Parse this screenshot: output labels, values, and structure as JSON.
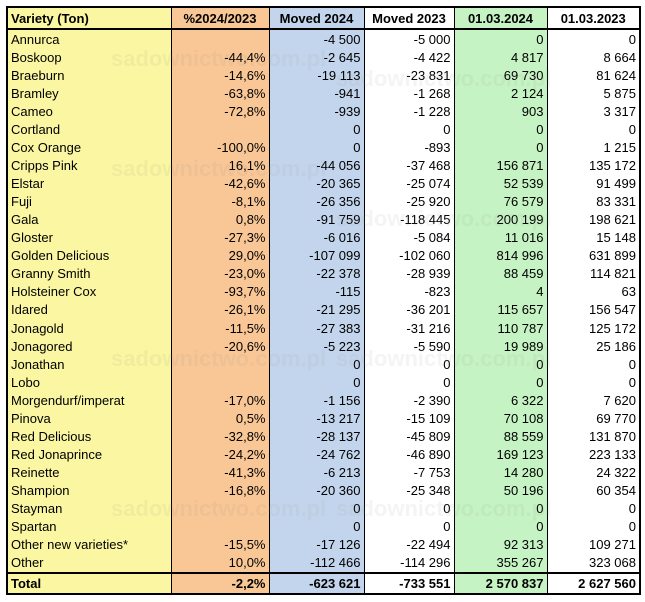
{
  "headers": [
    "Variety (Ton)",
    "%2024/2023",
    "Moved 2024",
    "Moved 2023",
    "01.03.2024",
    "01.03.2023"
  ],
  "rows": [
    [
      "Annurca",
      "",
      "-4 500",
      "-5 000",
      "0",
      "0"
    ],
    [
      "Boskoop",
      "-44,4%",
      "-2 645",
      "-4 422",
      "4 817",
      "8 664"
    ],
    [
      "Braeburn",
      "-14,6%",
      "-19 113",
      "-23 831",
      "69 730",
      "81 624"
    ],
    [
      "Bramley",
      "-63,8%",
      "-941",
      "-1 268",
      "2 124",
      "5 875"
    ],
    [
      "Cameo",
      "-72,8%",
      "-939",
      "-1 228",
      "903",
      "3 317"
    ],
    [
      "Cortland",
      "",
      "0",
      "0",
      "0",
      "0"
    ],
    [
      "Cox Orange",
      "-100,0%",
      "0",
      "-893",
      "0",
      "1 215"
    ],
    [
      "Cripps Pink",
      "16,1%",
      "-44 056",
      "-37 468",
      "156 871",
      "135 172"
    ],
    [
      "Elstar",
      "-42,6%",
      "-20 365",
      "-25 074",
      "52 539",
      "91 499"
    ],
    [
      "Fuji",
      "-8,1%",
      "-26 356",
      "-25 920",
      "76 579",
      "83 331"
    ],
    [
      "Gala",
      "0,8%",
      "-91 759",
      "-118 445",
      "200 199",
      "198 621"
    ],
    [
      "Gloster",
      "-27,3%",
      "-6 016",
      "-5 084",
      "11 016",
      "15 148"
    ],
    [
      "Golden Delicious",
      "29,0%",
      "-107 099",
      "-102 060",
      "814 996",
      "631 899"
    ],
    [
      "Granny Smith",
      "-23,0%",
      "-22 378",
      "-28 939",
      "88 459",
      "114 821"
    ],
    [
      "Holsteiner Cox",
      "-93,7%",
      "-115",
      "-823",
      "4",
      "63"
    ],
    [
      "Idared",
      "-26,1%",
      "-21 295",
      "-36 201",
      "115 657",
      "156 547"
    ],
    [
      "Jonagold",
      "-11,5%",
      "-27 383",
      "-31 216",
      "110 787",
      "125 172"
    ],
    [
      "Jonagored",
      "-20,6%",
      "-5 223",
      "-5 590",
      "19 989",
      "25 186"
    ],
    [
      "Jonathan",
      "",
      "0",
      "0",
      "0",
      "0"
    ],
    [
      "Lobo",
      "",
      "0",
      "0",
      "0",
      "0"
    ],
    [
      "Morgendurf/imperat",
      "-17,0%",
      "-1 156",
      "-2 390",
      "6 322",
      "7 620"
    ],
    [
      "Pinova",
      "0,5%",
      "-13 217",
      "-15 109",
      "70 108",
      "69 770"
    ],
    [
      "Red Delicious",
      "-32,8%",
      "-28 137",
      "-45 809",
      "88 559",
      "131 870"
    ],
    [
      "Red Jonaprince",
      "-24,2%",
      "-24 762",
      "-46 890",
      "169 123",
      "223 133"
    ],
    [
      "Reinette",
      "-41,3%",
      "-6 213",
      "-7 753",
      "14 280",
      "24 322"
    ],
    [
      "Shampion",
      "-16,8%",
      "-20 360",
      "-25 348",
      "50 196",
      "60 354"
    ],
    [
      "Stayman",
      "",
      "0",
      "0",
      "0",
      "0"
    ],
    [
      "Spartan",
      "",
      "0",
      "0",
      "0",
      "0"
    ],
    [
      "Other new varieties*",
      "-15,5%",
      "-17 126",
      "-22 494",
      "92 313",
      "109 271"
    ],
    [
      "Other",
      "10,0%",
      "-112 466",
      "-114 296",
      "355 267",
      "323 068"
    ]
  ],
  "total": [
    "Total",
    "-2,2%",
    "-623 621",
    "-733 551",
    "2 570 837",
    "2 627 560"
  ],
  "watermark": "sadownictwo.com.pl",
  "colors": {
    "variety_col": "#fbf6a1",
    "percent_col": "#f9c796",
    "moved2024_col": "#c3d5ec",
    "moved2023_col": "#ffffff",
    "stock2024_col": "#c6f3c3",
    "stock2023_col": "#ffffff"
  }
}
